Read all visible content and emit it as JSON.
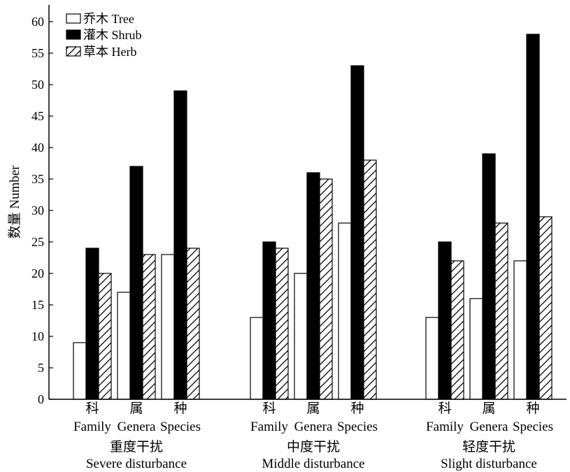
{
  "chart_data": {
    "type": "bar",
    "ylabel": "数量 Number",
    "ylim": [
      0,
      63
    ],
    "yticks": [
      0,
      5,
      10,
      15,
      20,
      25,
      30,
      35,
      40,
      45,
      50,
      55,
      60
    ],
    "grid": false,
    "legend_position": "top-left",
    "groups": [
      {
        "label_zh": "重度干扰",
        "label_en": "Severe disturbance",
        "categories": [
          {
            "label_zh": "科",
            "label_en": "Family",
            "values": [
              9,
              24,
              20
            ]
          },
          {
            "label_zh": "属",
            "label_en": "Genera",
            "values": [
              17,
              37,
              23
            ]
          },
          {
            "label_zh": "种",
            "label_en": "Species",
            "values": [
              23,
              49,
              24
            ]
          }
        ]
      },
      {
        "label_zh": "中度干扰",
        "label_en": "Middle disturbance",
        "categories": [
          {
            "label_zh": "科",
            "label_en": "Family",
            "values": [
              13,
              25,
              24
            ]
          },
          {
            "label_zh": "属",
            "label_en": "Genera",
            "values": [
              20,
              36,
              35
            ]
          },
          {
            "label_zh": "种",
            "label_en": "Species",
            "values": [
              28,
              53,
              38
            ]
          }
        ]
      },
      {
        "label_zh": "轻度干扰",
        "label_en": "Slight disturbance",
        "categories": [
          {
            "label_zh": "科",
            "label_en": "Family",
            "values": [
              13,
              25,
              22
            ]
          },
          {
            "label_zh": "属",
            "label_en": "Genera",
            "values": [
              16,
              39,
              28
            ]
          },
          {
            "label_zh": "种",
            "label_en": "Species",
            "values": [
              22,
              58,
              29
            ]
          }
        ]
      }
    ],
    "series": [
      {
        "name": "乔木 Tree",
        "style": "white"
      },
      {
        "name": "灌木 Shrub",
        "style": "black"
      },
      {
        "name": "草本 Herb",
        "style": "hatched"
      }
    ],
    "colors": {
      "tree": "#ffffff",
      "shrub": "#000000",
      "herb_hatch": "#000000",
      "axis": "#000000"
    }
  }
}
